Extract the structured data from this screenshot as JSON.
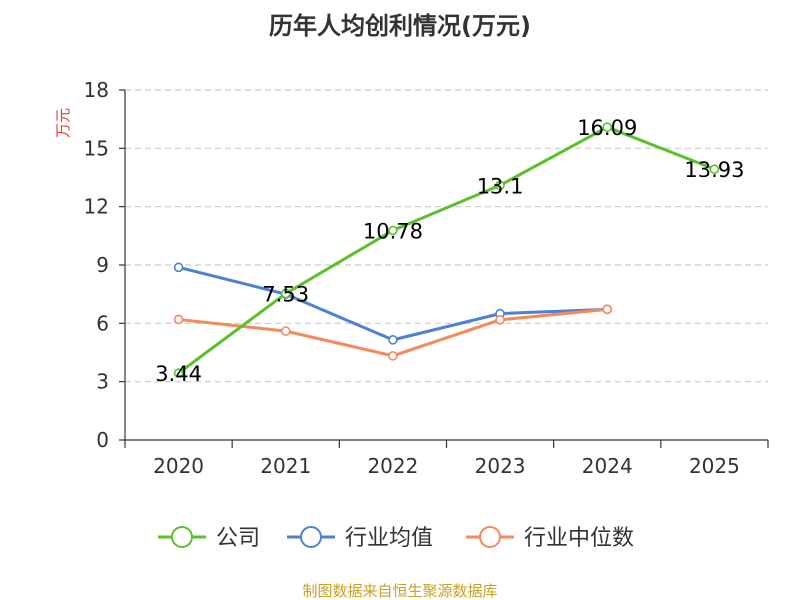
{
  "chart_data": {
    "type": "line",
    "title": "历年人均创利情况(万元)",
    "ylabel": "万元",
    "xlabel": "",
    "categories": [
      "2020",
      "2021",
      "2022",
      "2023",
      "2024",
      "2025"
    ],
    "ylim": [
      0,
      18
    ],
    "yticks": [
      0,
      3,
      6,
      9,
      12,
      15,
      18
    ],
    "grid": true,
    "legend_position": "bottom",
    "series": [
      {
        "name": "公司",
        "color": "#5ac12d",
        "values": [
          3.44,
          7.53,
          10.78,
          13.1,
          16.09,
          13.93
        ],
        "labels": [
          "3.44",
          "7.53",
          "10.78",
          "13.1",
          "16.09",
          "13.93"
        ]
      },
      {
        "name": "行业均值",
        "color": "#4f7fd6",
        "values": [
          8.88,
          7.5,
          5.15,
          6.5,
          6.72,
          null
        ]
      },
      {
        "name": "行业中位数",
        "color": "#f4895a",
        "values": [
          6.2,
          5.6,
          4.33,
          6.18,
          6.72,
          null
        ]
      }
    ],
    "source": "制图数据来自恒生聚源数据库"
  },
  "colors": {
    "ylabel": "#e03c31",
    "source": "#c9a227",
    "axis": "#333333",
    "grid": "#cccccc"
  }
}
